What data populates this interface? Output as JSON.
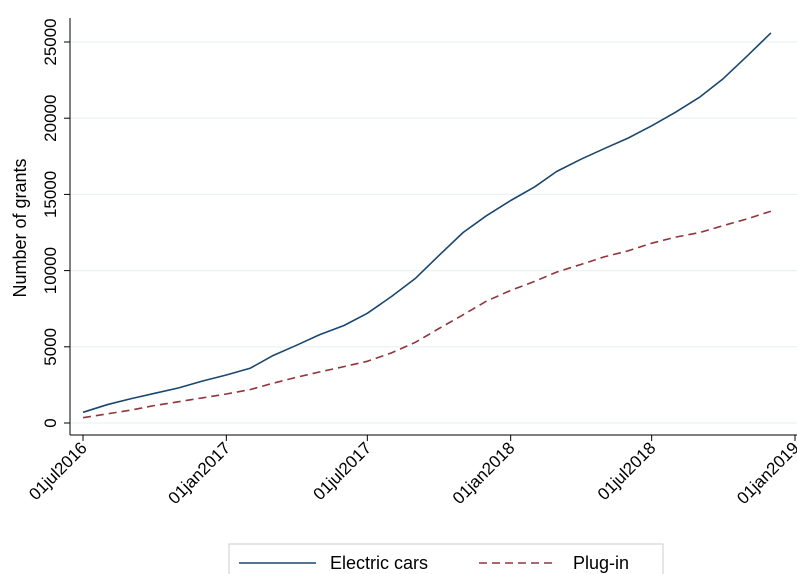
{
  "chart_data": {
    "type": "line",
    "title": "",
    "xlabel": "",
    "ylabel": "Number of grants",
    "x_ticks": [
      "01jul2016",
      "01jan2017",
      "01jul2017",
      "01jan2018",
      "01jul2018",
      "01jan2019"
    ],
    "y_ticks": [
      0,
      5000,
      10000,
      15000,
      20000,
      25000
    ],
    "xlim": [
      "2016-07-01",
      "2019-01-01"
    ],
    "ylim": [
      0,
      26000
    ],
    "grid": "horizontal",
    "legend_position": "bottom",
    "series": [
      {
        "name": "Electric cars",
        "color": "#1a476f",
        "style": "solid",
        "points": [
          [
            "2016-07-01",
            700
          ],
          [
            "2016-08-01",
            1200
          ],
          [
            "2016-09-01",
            1600
          ],
          [
            "2016-10-01",
            1950
          ],
          [
            "2016-11-01",
            2300
          ],
          [
            "2016-12-01",
            2750
          ],
          [
            "2017-01-01",
            3150
          ],
          [
            "2017-02-01",
            3600
          ],
          [
            "2017-03-01",
            4400
          ],
          [
            "2017-04-01",
            5100
          ],
          [
            "2017-05-01",
            5800
          ],
          [
            "2017-06-01",
            6400
          ],
          [
            "2017-07-01",
            7200
          ],
          [
            "2017-08-01",
            8300
          ],
          [
            "2017-09-01",
            9500
          ],
          [
            "2017-10-01",
            11000
          ],
          [
            "2017-11-01",
            12500
          ],
          [
            "2017-12-01",
            13600
          ],
          [
            "2018-01-01",
            14600
          ],
          [
            "2018-02-01",
            15500
          ],
          [
            "2018-03-01",
            16500
          ],
          [
            "2018-04-01",
            17300
          ],
          [
            "2018-05-01",
            18000
          ],
          [
            "2018-06-01",
            18700
          ],
          [
            "2018-07-01",
            19500
          ],
          [
            "2018-08-01",
            20400
          ],
          [
            "2018-09-01",
            21400
          ],
          [
            "2018-10-01",
            22600
          ],
          [
            "2018-11-01",
            24100
          ],
          [
            "2018-12-01",
            25600
          ]
        ]
      },
      {
        "name": "Plug-in",
        "color": "#90353b",
        "style": "dashed",
        "points": [
          [
            "2016-07-01",
            350
          ],
          [
            "2016-08-01",
            600
          ],
          [
            "2016-09-01",
            850
          ],
          [
            "2016-10-01",
            1150
          ],
          [
            "2016-11-01",
            1400
          ],
          [
            "2016-12-01",
            1650
          ],
          [
            "2017-01-01",
            1900
          ],
          [
            "2017-02-01",
            2200
          ],
          [
            "2017-03-01",
            2600
          ],
          [
            "2017-04-01",
            3000
          ],
          [
            "2017-05-01",
            3350
          ],
          [
            "2017-06-01",
            3700
          ],
          [
            "2017-07-01",
            4050
          ],
          [
            "2017-08-01",
            4600
          ],
          [
            "2017-09-01",
            5300
          ],
          [
            "2017-10-01",
            6200
          ],
          [
            "2017-11-01",
            7100
          ],
          [
            "2017-12-01",
            8000
          ],
          [
            "2018-01-01",
            8700
          ],
          [
            "2018-02-01",
            9300
          ],
          [
            "2018-03-01",
            9900
          ],
          [
            "2018-04-01",
            10400
          ],
          [
            "2018-05-01",
            10900
          ],
          [
            "2018-06-01",
            11300
          ],
          [
            "2018-07-01",
            11800
          ],
          [
            "2018-08-01",
            12200
          ],
          [
            "2018-09-01",
            12500
          ],
          [
            "2018-10-01",
            12950
          ],
          [
            "2018-11-01",
            13400
          ],
          [
            "2018-12-01",
            13900
          ]
        ]
      }
    ]
  }
}
